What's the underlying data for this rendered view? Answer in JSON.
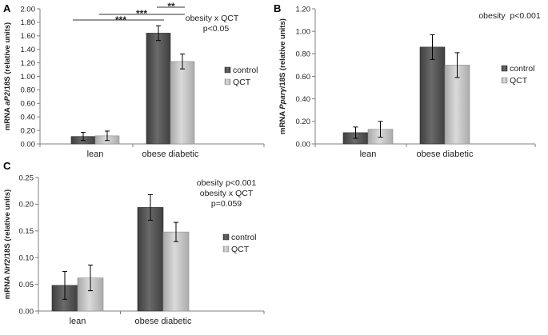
{
  "colors": {
    "control": "#555555",
    "qct": "#c4c4c4",
    "axis": "#808080",
    "error": "#000000"
  },
  "chart_data": [
    {
      "panel": "A",
      "type": "bar",
      "ylabel": {
        "prefix": "mRNA ",
        "italic": "aP2",
        "suffix": "/18S (relative units)"
      },
      "categories": [
        "lean",
        "obese diabetic"
      ],
      "ylim": [
        0,
        2.0
      ],
      "yticks": [
        "0.00",
        "0.20",
        "0.40",
        "0.60",
        "0.80",
        "1.00",
        "1.20",
        "1.40",
        "1.60",
        "1.80",
        "2.00"
      ],
      "series": [
        {
          "name": "control",
          "values": [
            0.11,
            1.64
          ],
          "errors": [
            0.06,
            0.11
          ]
        },
        {
          "name": "QCT",
          "values": [
            0.12,
            1.22
          ],
          "errors": [
            0.07,
            0.11
          ]
        }
      ],
      "annotation": [
        "obesity x QCT",
        "p<0.05"
      ],
      "significance": [
        {
          "label": "***",
          "from": "lean",
          "to": "obese diabetic control"
        },
        {
          "label": "***",
          "from": "lean QCT",
          "to": "obese diabetic QCT"
        },
        {
          "label": "**",
          "from": "obese diabetic control",
          "to": "obese diabetic QCT"
        }
      ],
      "legend": [
        "control",
        "QCT"
      ]
    },
    {
      "panel": "B",
      "type": "bar",
      "ylabel": {
        "prefix": "mRNA ",
        "italic": "Pparγ",
        "suffix": "/18S (relative units)"
      },
      "categories": [
        "lean",
        "obese diabetic"
      ],
      "ylim": [
        0,
        1.2
      ],
      "yticks": [
        "0.00",
        "0.20",
        "0.40",
        "0.60",
        "0.80",
        "1.00",
        "1.20"
      ],
      "series": [
        {
          "name": "control",
          "values": [
            0.1,
            0.86
          ],
          "errors": [
            0.05,
            0.11
          ]
        },
        {
          "name": "QCT",
          "values": [
            0.13,
            0.7
          ],
          "errors": [
            0.07,
            0.11
          ]
        }
      ],
      "annotation": [
        "obesity  p<0.001"
      ],
      "legend": [
        "control",
        "QCT"
      ]
    },
    {
      "panel": "C",
      "type": "bar",
      "ylabel": {
        "prefix": "mRNA ",
        "italic": "Nrf2",
        "suffix": "/18S (relative units)"
      },
      "categories": [
        "lean",
        "obese diabetic"
      ],
      "ylim": [
        0,
        0.25
      ],
      "yticks": [
        "0.00",
        "0.05",
        "0.10",
        "0.15",
        "0.20",
        "0.25"
      ],
      "series": [
        {
          "name": "control",
          "values": [
            0.048,
            0.194
          ],
          "errors": [
            0.026,
            0.024
          ]
        },
        {
          "name": "QCT",
          "values": [
            0.062,
            0.148
          ],
          "errors": [
            0.024,
            0.018
          ]
        }
      ],
      "annotation": [
        "obesity p<0.001",
        "obesity x QCT",
        "p=0.059"
      ],
      "legend": [
        "control",
        "QCT"
      ]
    }
  ]
}
